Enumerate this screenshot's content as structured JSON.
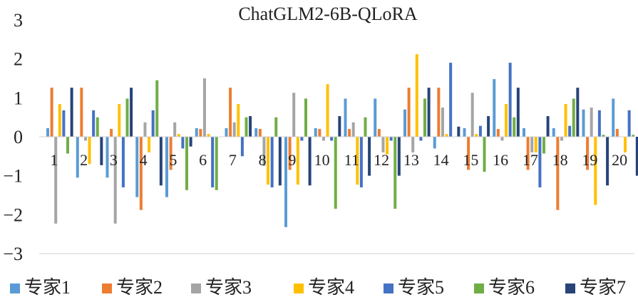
{
  "chart_data": {
    "type": "bar",
    "title": "ChatGLM2-6B-QLoRA",
    "xlabel": "",
    "ylabel": "",
    "ylim": [
      -3,
      3
    ],
    "yticks": [
      "3",
      "2",
      "1",
      "0",
      "−1",
      "−2",
      "−3"
    ],
    "categories": [
      "1",
      "2",
      "3",
      "4",
      "5",
      "6",
      "7",
      "8",
      "9",
      "10",
      "11",
      "12",
      "13",
      "14",
      "15",
      "16",
      "17",
      "18",
      "19",
      "20"
    ],
    "grid": false,
    "legend_position": "bottom",
    "series": [
      {
        "name": "专家1",
        "color": "#5B9BD5",
        "values": [
          0.22,
          -1.05,
          -1.05,
          -1.55,
          -1.55,
          0.22,
          0.22,
          0.22,
          -2.32,
          0.22,
          0.98,
          0.98,
          0.7,
          -0.3,
          0.22,
          1.48,
          0.22,
          0.22,
          0.7,
          0.98
        ]
      },
      {
        "name": "专家2",
        "color": "#ED7D31",
        "values": [
          1.26,
          1.26,
          0.2,
          -1.88,
          -0.85,
          0.2,
          1.26,
          0.2,
          -0.85,
          0.2,
          0.2,
          0.2,
          1.26,
          1.26,
          -0.85,
          0.2,
          -0.85,
          -1.88,
          -0.85,
          0.2
        ]
      },
      {
        "name": "专家3",
        "color": "#A5A5A5",
        "values": [
          -2.23,
          -0.1,
          -2.23,
          0.37,
          0.37,
          1.5,
          0.37,
          -0.75,
          1.13,
          -0.1,
          0.37,
          -0.4,
          -0.4,
          0.75,
          1.13,
          -0.1,
          -0.4,
          -0.1,
          0.75,
          0.0
        ]
      },
      {
        "name": "专家4",
        "color": "#FFC000",
        "values": [
          0.84,
          -0.7,
          0.84,
          -0.4,
          0.07,
          0.07,
          0.84,
          -1.23,
          -1.23,
          1.35,
          -1.23,
          -0.45,
          2.12,
          0.07,
          0.07,
          0.84,
          -0.4,
          0.84,
          -1.75,
          -0.4
        ]
      },
      {
        "name": "专家5",
        "color": "#4472C4",
        "values": [
          0.68,
          0.68,
          -1.3,
          0.68,
          -0.3,
          -1.3,
          -0.5,
          -1.3,
          -0.1,
          -0.1,
          -1.3,
          -0.1,
          -0.1,
          1.9,
          0.28,
          1.9,
          -1.3,
          0.28,
          0.68,
          0.68
        ]
      },
      {
        "name": "专家6",
        "color": "#70AD47",
        "values": [
          -0.43,
          0.5,
          0.98,
          1.45,
          -1.37,
          -1.37,
          0.5,
          0.5,
          0.98,
          -1.85,
          0.5,
          -1.85,
          0.98,
          0.0,
          -0.9,
          0.5,
          -0.43,
          0.98,
          0.05,
          0.05
        ]
      },
      {
        "name": "专家7",
        "color": "#264478",
        "values": [
          1.26,
          -0.73,
          1.26,
          -1.25,
          -0.25,
          0.0,
          0.53,
          -1.25,
          -1.25,
          0.53,
          -1.0,
          -1.0,
          1.26,
          0.26,
          0.53,
          1.26,
          0.53,
          1.26,
          -1.25,
          -1.0
        ]
      }
    ]
  }
}
